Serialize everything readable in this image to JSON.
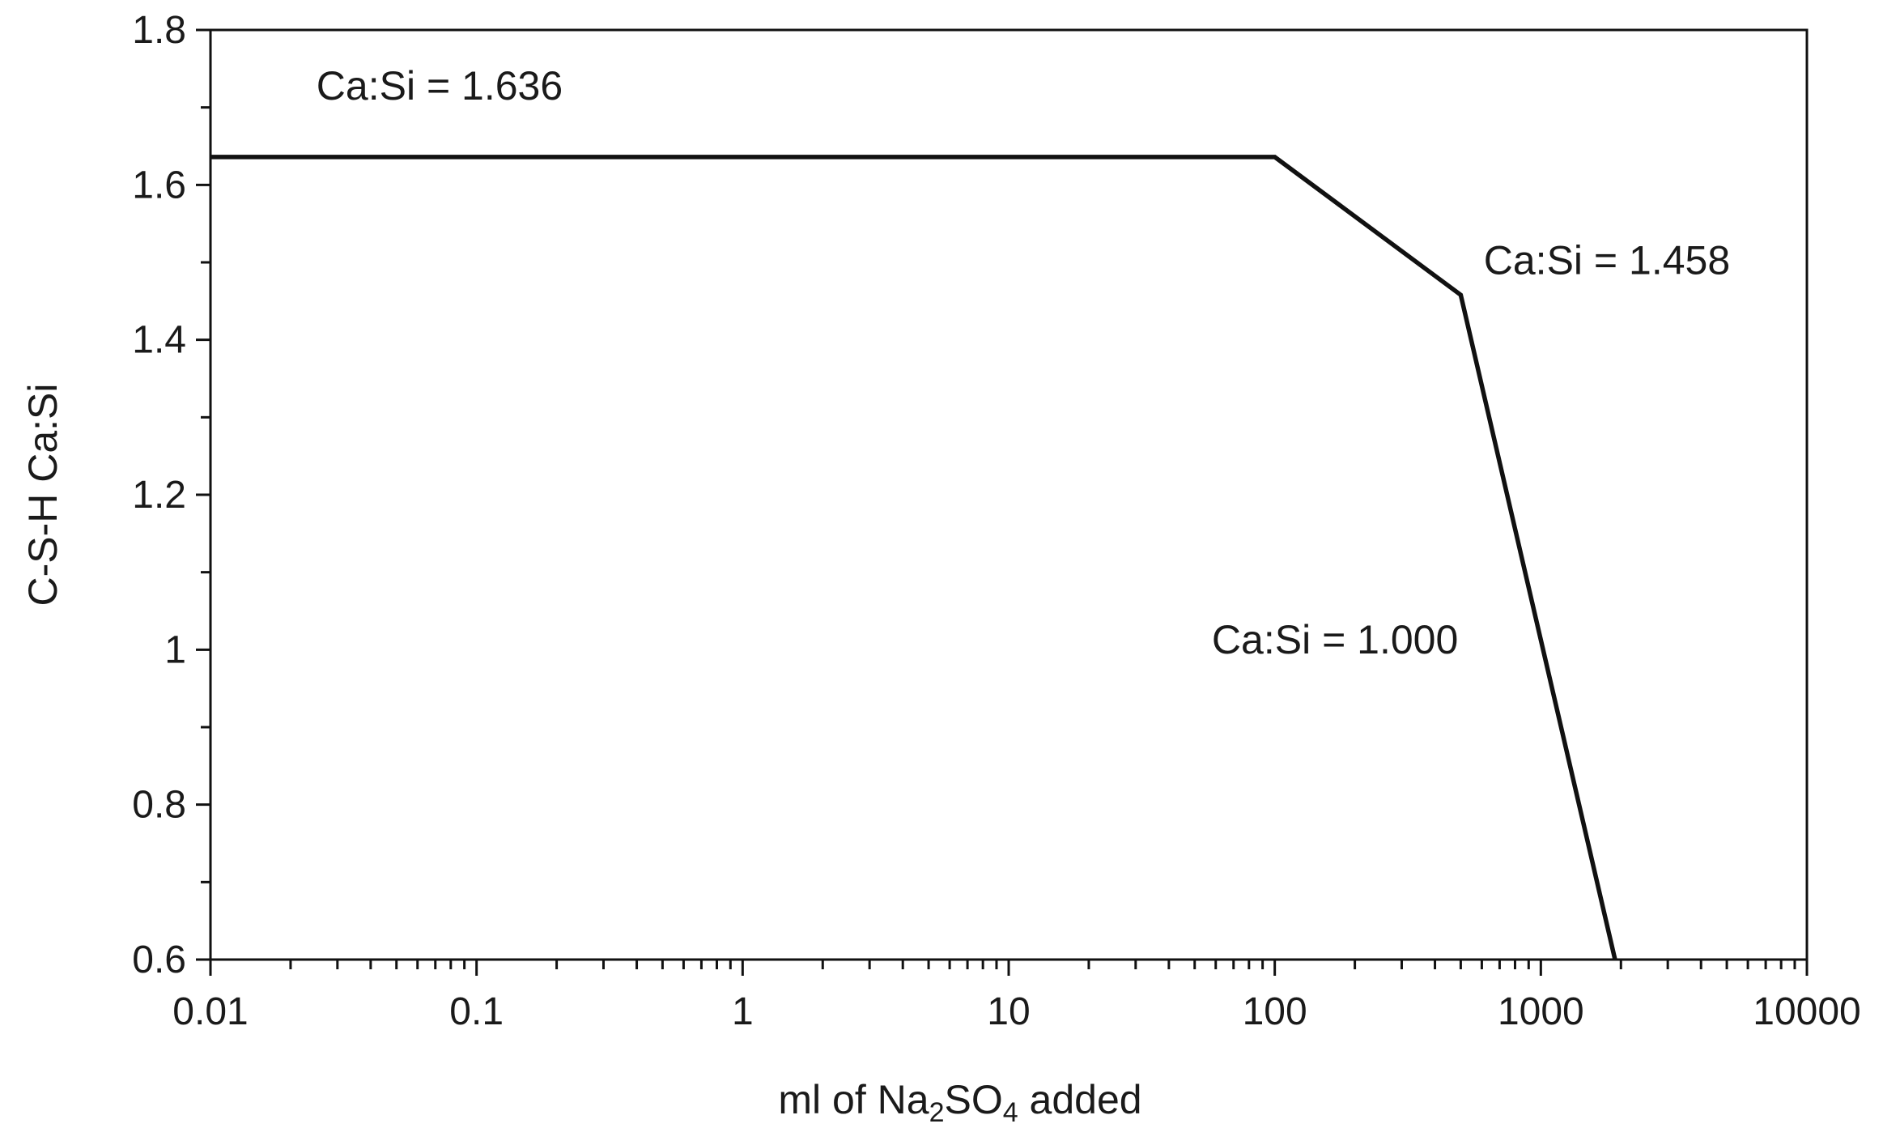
{
  "chart_data": {
    "type": "line",
    "x_scale": "log",
    "xlim": [
      0.01,
      10000
    ],
    "ylim": [
      0.6,
      1.8
    ],
    "x_ticks": [
      "0.01",
      "0.1",
      "1",
      "10",
      "100",
      "1000",
      "10000"
    ],
    "y_ticks": [
      "0.6",
      "0.8",
      "1",
      "1.2",
      "1.4",
      "1.6",
      "1.8"
    ],
    "xlabel": {
      "prefix": "ml of Na",
      "sub1": "2",
      "mid": "SO",
      "sub2": "4",
      "suffix": " added"
    },
    "ylabel": "C-S-H Ca:Si",
    "grid": false,
    "legend": "none",
    "series": [
      {
        "x": [
          0.01,
          100,
          500,
          1900
        ],
        "y": [
          1.636,
          1.636,
          1.458,
          0.6
        ]
      }
    ],
    "annotations": [
      {
        "text": "Ca:Si = 1.636",
        "x": 0.025,
        "y": 1.71
      },
      {
        "text": "Ca:Si = 1.458",
        "x": 610,
        "y": 1.485
      },
      {
        "text": "Ca:Si = 1.000",
        "x": 58,
        "y": 0.995
      }
    ],
    "colors": {
      "line": "#111111",
      "axis": "#111111",
      "text": "#1a1a1a"
    }
  }
}
